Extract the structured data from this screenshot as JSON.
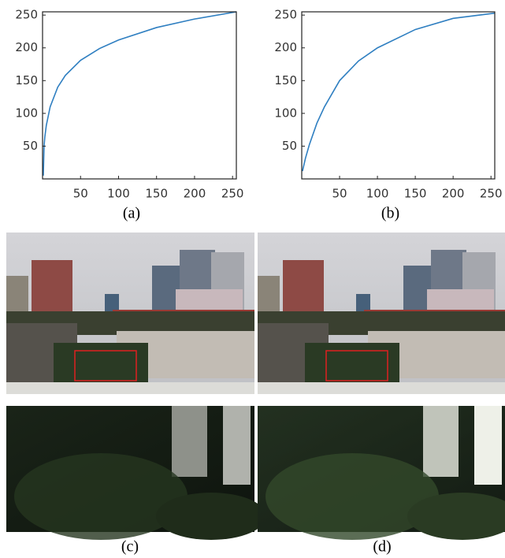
{
  "chart_data": [
    {
      "type": "line",
      "x": [
        1,
        2,
        3,
        5,
        10,
        20,
        30,
        50,
        75,
        100,
        150,
        200,
        255
      ],
      "values": [
        5,
        50,
        64,
        82,
        110,
        140,
        158,
        181,
        199,
        212,
        231,
        244,
        255
      ],
      "color": "#2f7fc1",
      "xlim": [
        0,
        255
      ],
      "ylim": [
        0,
        255
      ],
      "xticks": [
        50,
        100,
        150,
        200,
        250
      ],
      "yticks": [
        50,
        100,
        150,
        200,
        250
      ],
      "caption": "(a)"
    },
    {
      "type": "line",
      "x": [
        1,
        5,
        10,
        20,
        30,
        50,
        75,
        100,
        150,
        200,
        255
      ],
      "values": [
        12,
        32,
        52,
        85,
        110,
        150,
        180,
        200,
        228,
        245,
        253
      ],
      "color": "#2f7fc1",
      "xlim": [
        0,
        255
      ],
      "ylim": [
        0,
        255
      ],
      "xticks": [
        50,
        100,
        150,
        200,
        250
      ],
      "yticks": [
        50,
        100,
        150,
        200,
        250
      ],
      "caption": "(b)"
    }
  ],
  "captions": [
    "(c)",
    "(d)"
  ]
}
